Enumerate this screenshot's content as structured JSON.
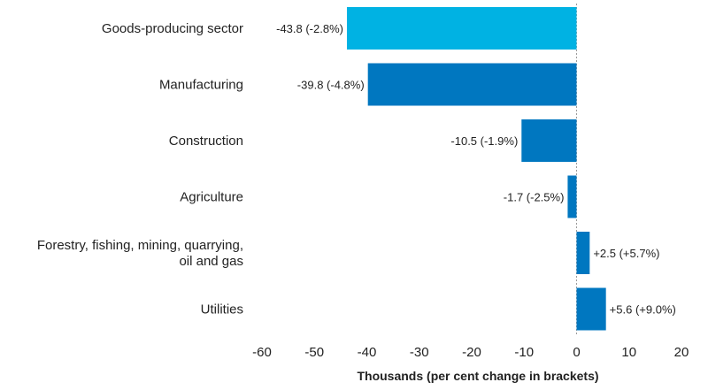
{
  "chart_data": {
    "type": "bar",
    "orientation": "horizontal",
    "title": "",
    "xlabel": "Thousands (per cent change in brackets)",
    "ylabel": "",
    "xlim": [
      -60,
      20
    ],
    "xticks": [
      -60,
      -50,
      -40,
      -30,
      -20,
      -10,
      0,
      10,
      20
    ],
    "grid": false,
    "legend": "none",
    "categories": [
      [
        "Goods-producing sector"
      ],
      [
        "Manufacturing"
      ],
      [
        "Construction"
      ],
      [
        "Agriculture"
      ],
      [
        "Forestry, fishing, mining, quarrying,",
        "oil and gas"
      ],
      [
        "Utilities"
      ]
    ],
    "values": [
      -43.8,
      -39.8,
      -10.5,
      -1.7,
      2.5,
      5.6
    ],
    "value_labels": [
      "-43.8 (-2.8%)",
      "-39.8 (-4.8%)",
      "-10.5 (-1.9%)",
      "-1.7 (-2.5%)",
      "+2.5 (+5.7%)",
      "+5.6 (+9.0%)"
    ],
    "colors": [
      "#00b2e3",
      "#0077c0",
      "#0077c0",
      "#0077c0",
      "#0077c0",
      "#0077c0"
    ]
  }
}
